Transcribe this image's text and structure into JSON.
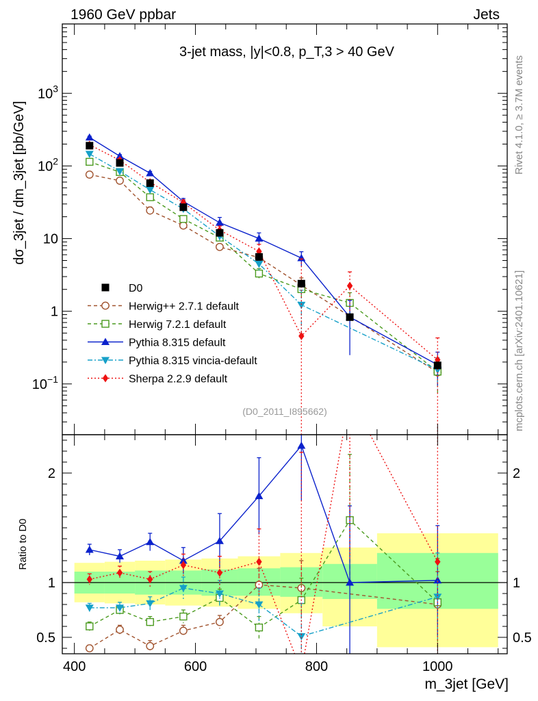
{
  "header": {
    "left": "1960 GeV ppbar",
    "right": "Jets"
  },
  "side_labels": {
    "rivet": "Rivet 4.1.0, ≥ 3.7M events",
    "mcplots": "mcplots.cern.ch [arXiv:2401.10621]"
  },
  "chart_data": {
    "type": "line",
    "title": "3-jet mass, |y|<0.8, p_T,3 > 40 GeV",
    "analysis_id": "(D0_2011_I895662)",
    "xlabel": "m_3jet [GeV]",
    "ylabel_main": "dσ_3jet / dm_3jet [pb/GeV]",
    "ylabel_ratio": "Ratio to D0",
    "xlim": [
      380,
      1115
    ],
    "ylim_main": [
      0.02,
      9000
    ],
    "ylim_ratio": [
      0.35,
      2.35
    ],
    "main_y_ticks": [
      "10^-1",
      "1",
      "10",
      "10^2",
      "10^3"
    ],
    "main_y_tick_values": [
      0.1,
      1,
      10,
      100,
      1000
    ],
    "x_ticks": [
      400,
      600,
      800,
      1000
    ],
    "ratio_y_ticks": [
      0.5,
      1,
      2
    ],
    "ratio_bands": [
      {
        "x": [
          400,
          450
        ],
        "inner": [
          0.9,
          1.1
        ],
        "outer": [
          0.82,
          1.18
        ]
      },
      {
        "x": [
          450,
          500
        ],
        "inner": [
          0.9,
          1.1
        ],
        "outer": [
          0.81,
          1.19
        ]
      },
      {
        "x": [
          500,
          550
        ],
        "inner": [
          0.89,
          1.11
        ],
        "outer": [
          0.8,
          1.2
        ]
      },
      {
        "x": [
          550,
          610
        ],
        "inner": [
          0.89,
          1.11
        ],
        "outer": [
          0.79,
          1.21
        ]
      },
      {
        "x": [
          610,
          670
        ],
        "inner": [
          0.88,
          1.12
        ],
        "outer": [
          0.78,
          1.22
        ]
      },
      {
        "x": [
          670,
          740
        ],
        "inner": [
          0.88,
          1.13
        ],
        "outer": [
          0.76,
          1.24
        ]
      },
      {
        "x": [
          740,
          810
        ],
        "inner": [
          0.87,
          1.14
        ],
        "outer": [
          0.72,
          1.27
        ]
      },
      {
        "x": [
          810,
          900
        ],
        "inner": [
          0.85,
          1.17
        ],
        "outer": [
          0.6,
          1.32
        ]
      },
      {
        "x": [
          900,
          1100
        ],
        "inner": [
          0.76,
          1.27
        ],
        "outer": [
          0.41,
          1.45
        ]
      }
    ],
    "data": {
      "name": "D0",
      "x": [
        425,
        475,
        525,
        580,
        640,
        705,
        775,
        855,
        1000
      ],
      "y": [
        190,
        110,
        58,
        27,
        12,
        5.6,
        2.4,
        0.83,
        0.18
      ]
    },
    "series": [
      {
        "name": "Herwig++ 2.7.1 default",
        "color": "#a0522d",
        "dash": "5,4",
        "marker": "circle-open",
        "x": [
          425,
          475,
          525,
          580,
          640,
          705,
          775,
          1000
        ],
        "ratio": [
          0.4,
          0.57,
          0.42,
          0.56,
          0.64,
          0.98,
          0.95,
          0.8
        ],
        "ratio_err": [
          0.03,
          0.04,
          0.05,
          0.05,
          0.06,
          0.15,
          0.25,
          0.3
        ]
      },
      {
        "name": "Herwig 7.2.1 default",
        "color": "#4a9a1e",
        "dash": "5,4",
        "marker": "square-open",
        "x": [
          425,
          475,
          525,
          580,
          640,
          705,
          775,
          855,
          1000
        ],
        "ratio": [
          0.6,
          0.75,
          0.64,
          0.69,
          0.86,
          0.59,
          0.84,
          1.57,
          0.82
        ],
        "ratio_err": [
          0.04,
          0.04,
          0.05,
          0.06,
          0.08,
          0.1,
          0.2,
          0.6,
          0.4
        ]
      },
      {
        "name": "Pythia 8.315 default",
        "color": "#0b22cc",
        "dash": "",
        "marker": "triangle-up",
        "x": [
          425,
          475,
          525,
          580,
          640,
          705,
          775,
          855,
          1000
        ],
        "ratio": [
          1.3,
          1.24,
          1.37,
          1.2,
          1.38,
          1.79,
          2.25,
          1.0,
          1.02
        ],
        "ratio_err": [
          0.05,
          0.06,
          0.08,
          0.12,
          0.25,
          0.35,
          0.5,
          0.7,
          0.5
        ]
      },
      {
        "name": "Pythia 8.315 vincia-default",
        "color": "#16a0c8",
        "dash": "7,3,2,3",
        "marker": "triangle-down",
        "x": [
          425,
          475,
          525,
          580,
          640,
          705,
          775,
          1000
        ],
        "ratio": [
          0.77,
          0.77,
          0.81,
          0.95,
          0.9,
          0.8,
          0.51,
          0.87
        ],
        "ratio_err": [
          0.04,
          0.05,
          0.06,
          0.1,
          0.12,
          0.15,
          0.3,
          0.4
        ]
      },
      {
        "name": "Sherpa 2.2.9 default",
        "color": "#ee1111",
        "dash": "2,3",
        "marker": "diamond",
        "x": [
          425,
          475,
          525,
          580,
          640,
          705,
          775,
          855,
          1000
        ],
        "ratio": [
          1.03,
          1.09,
          1.03,
          1.16,
          1.09,
          1.19,
          0.19,
          2.7,
          1.19
        ],
        "ratio_err": [
          0.05,
          0.06,
          0.07,
          0.1,
          0.15,
          0.3,
          2.0,
          1.5,
          1.2
        ]
      }
    ]
  }
}
